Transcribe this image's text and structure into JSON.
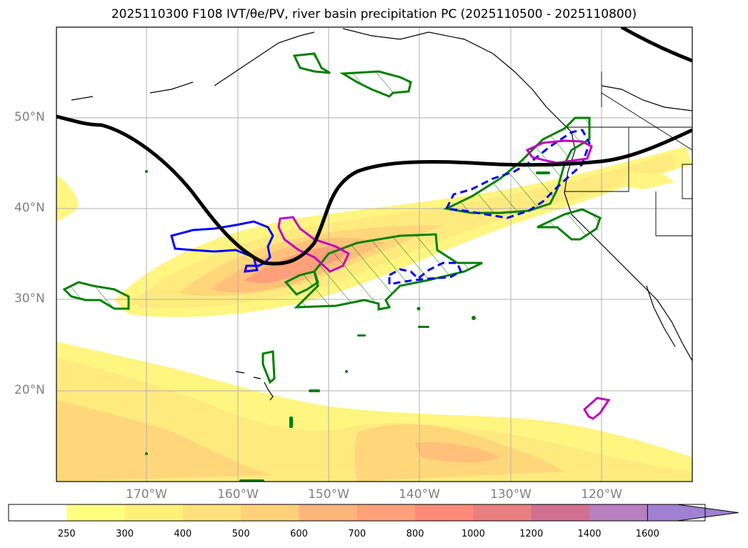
{
  "title": "2025110300 F108 IVT/θe/PV, river basin precipitation PC (2025110500 - 2025110800)",
  "lat_labels": [
    "50°N",
    "40°N",
    "30°N",
    "20°N"
  ],
  "lon_labels": [
    "170°W",
    "160°W",
    "150°W",
    "140°W",
    "130°W",
    "120°W"
  ],
  "colorbar": {
    "labels": [
      "250",
      "300",
      "400",
      "500",
      "600",
      "700",
      "800",
      "1000",
      "1200",
      "1400",
      "1600"
    ],
    "colors": [
      "#ffffff",
      "#ffff80",
      "#fff07a",
      "#ffe07a",
      "#ffd07a",
      "#ffb47a",
      "#ffa07a",
      "#ff8a7a",
      "#e88080",
      "#d07090",
      "#b880c0",
      "#a080d0"
    ]
  },
  "legend_colors": {
    "pv_contour": "#000000",
    "green_hatch": "#008000",
    "blue_contour": "#0000ff",
    "magenta_contour": "#c000c0"
  }
}
